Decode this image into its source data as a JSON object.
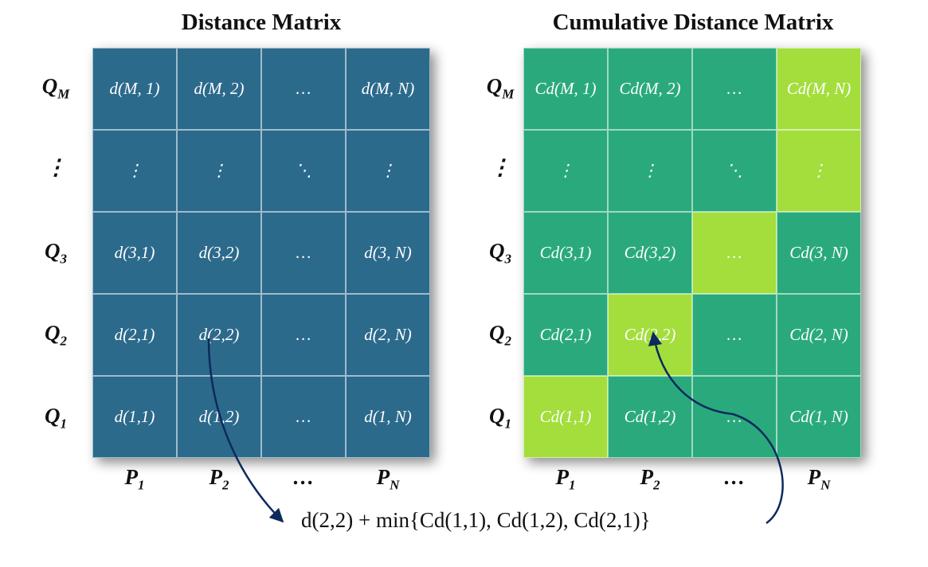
{
  "left": {
    "title": "Distance Matrix",
    "color": "#2c6a8c",
    "rows": [
      [
        "d(M, 1)",
        "d(M, 2)",
        "…",
        "d(M, N)"
      ],
      [
        "⋮",
        "⋮",
        "⋱",
        "⋮"
      ],
      [
        "d(3,1)",
        "d(3,2)",
        "…",
        "d(3, N)"
      ],
      [
        "d(2,1)",
        "d(2,2)",
        "…",
        "d(2, N)"
      ],
      [
        "d(1,1)",
        "d(1,2)",
        "…",
        "d(1, N)"
      ]
    ]
  },
  "right": {
    "title": "Cumulative Distance Matrix",
    "base_color": "#2aaa7c",
    "highlight_color": "#a3de3c",
    "rows": [
      [
        "Cd(M, 1)",
        "Cd(M, 2)",
        "…",
        "Cd(M, N)"
      ],
      [
        "⋮",
        "⋮",
        "⋱",
        "⋮"
      ],
      [
        "Cd(3,1)",
        "Cd(3,2)",
        "…",
        "Cd(3, N)"
      ],
      [
        "Cd(2,1)",
        "Cd(2,2)",
        "…",
        "Cd(2, N)"
      ],
      [
        "Cd(1,1)",
        "Cd(1,2)",
        "…",
        "Cd(1, N)"
      ]
    ],
    "highlighted": [
      [
        0,
        3
      ],
      [
        1,
        3
      ],
      [
        2,
        2
      ],
      [
        3,
        1
      ],
      [
        4,
        0
      ]
    ]
  },
  "row_labels": [
    {
      "main": "Q",
      "sub": "M"
    },
    {
      "main": "⋮",
      "sub": ""
    },
    {
      "main": "Q",
      "sub": "3"
    },
    {
      "main": "Q",
      "sub": "2"
    },
    {
      "main": "Q",
      "sub": "1"
    }
  ],
  "col_labels": [
    {
      "main": "P",
      "sub": "1"
    },
    {
      "main": "P",
      "sub": "2"
    },
    {
      "main": "…",
      "sub": ""
    },
    {
      "main": "P",
      "sub": "N"
    }
  ],
  "formula": "d(2,2) + min{Cd(1,1), Cd(1,2), Cd(2,1)}",
  "arrow_color": "#0d2a5c"
}
